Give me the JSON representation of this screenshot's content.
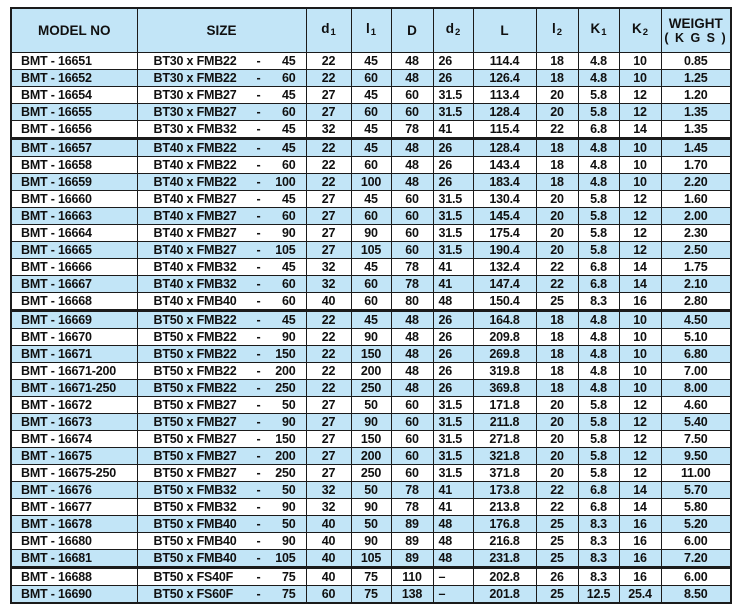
{
  "colors": {
    "row_alt_bg": "#c2e5f7",
    "header_bg": "#c2e5f7",
    "border": "#1b1b1b",
    "text": "#101010",
    "page_bg": "#ffffff"
  },
  "table": {
    "size_separator": "-",
    "columns": [
      {
        "key": "model",
        "label": "MODEL NO"
      },
      {
        "key": "size",
        "label": "SIZE"
      },
      {
        "key": "d1",
        "label": "d",
        "sub": "1"
      },
      {
        "key": "l1",
        "label": "l",
        "sub": "1"
      },
      {
        "key": "D",
        "label": "D"
      },
      {
        "key": "d2",
        "label": "d",
        "sub": "2"
      },
      {
        "key": "L",
        "label": "L"
      },
      {
        "key": "l2",
        "label": "l",
        "sub": "2"
      },
      {
        "key": "K1",
        "label": "K",
        "sub": "1"
      },
      {
        "key": "K2",
        "label": "K",
        "sub": "2"
      },
      {
        "key": "weight",
        "label": "WEIGHT",
        "sub_line": "( K G S )"
      }
    ],
    "rows": [
      {
        "model": "BMT - 16651",
        "size_base": "BT30 x FMB22",
        "size_len": "45",
        "d1": "22",
        "l1": "45",
        "D": "48",
        "d2": "26",
        "L": "114.4",
        "l2": "18",
        "K1": "4.8",
        "K2": "10",
        "weight": "0.85",
        "group_end": false
      },
      {
        "model": "BMT - 16652",
        "size_base": "BT30 x FMB22",
        "size_len": "60",
        "d1": "22",
        "l1": "60",
        "D": "48",
        "d2": "26",
        "L": "126.4",
        "l2": "18",
        "K1": "4.8",
        "K2": "10",
        "weight": "1.25",
        "group_end": false
      },
      {
        "model": "BMT - 16654",
        "size_base": "BT30 x FMB27",
        "size_len": "45",
        "d1": "27",
        "l1": "45",
        "D": "60",
        "d2": "31.5",
        "L": "113.4",
        "l2": "20",
        "K1": "5.8",
        "K2": "12",
        "weight": "1.20",
        "group_end": false
      },
      {
        "model": "BMT - 16655",
        "size_base": "BT30 x FMB27",
        "size_len": "60",
        "d1": "27",
        "l1": "60",
        "D": "60",
        "d2": "31.5",
        "L": "128.4",
        "l2": "20",
        "K1": "5.8",
        "K2": "12",
        "weight": "1.35",
        "group_end": false
      },
      {
        "model": "BMT - 16656",
        "size_base": "BT30 x FMB32",
        "size_len": "45",
        "d1": "32",
        "l1": "45",
        "D": "78",
        "d2": "41",
        "L": "115.4",
        "l2": "22",
        "K1": "6.8",
        "K2": "14",
        "weight": "1.35",
        "group_end": true
      },
      {
        "model": "BMT - 16657",
        "size_base": "BT40 x FMB22",
        "size_len": "45",
        "d1": "22",
        "l1": "45",
        "D": "48",
        "d2": "26",
        "L": "128.4",
        "l2": "18",
        "K1": "4.8",
        "K2": "10",
        "weight": "1.45",
        "group_end": false
      },
      {
        "model": "BMT - 16658",
        "size_base": "BT40 x FMB22",
        "size_len": "60",
        "d1": "22",
        "l1": "60",
        "D": "48",
        "d2": "26",
        "L": "143.4",
        "l2": "18",
        "K1": "4.8",
        "K2": "10",
        "weight": "1.70",
        "group_end": false
      },
      {
        "model": "BMT - 16659",
        "size_base": "BT40 x FMB22",
        "size_len": "100",
        "d1": "22",
        "l1": "100",
        "D": "48",
        "d2": "26",
        "L": "183.4",
        "l2": "18",
        "K1": "4.8",
        "K2": "10",
        "weight": "2.20",
        "group_end": false
      },
      {
        "model": "BMT - 16660",
        "size_base": "BT40 x FMB27",
        "size_len": "45",
        "d1": "27",
        "l1": "45",
        "D": "60",
        "d2": "31.5",
        "L": "130.4",
        "l2": "20",
        "K1": "5.8",
        "K2": "12",
        "weight": "1.60",
        "group_end": false
      },
      {
        "model": "BMT - 16663",
        "size_base": "BT40 x FMB27",
        "size_len": "60",
        "d1": "27",
        "l1": "60",
        "D": "60",
        "d2": "31.5",
        "L": "145.4",
        "l2": "20",
        "K1": "5.8",
        "K2": "12",
        "weight": "2.00",
        "group_end": false
      },
      {
        "model": "BMT - 16664",
        "size_base": "BT40 x FMB27",
        "size_len": "90",
        "d1": "27",
        "l1": "90",
        "D": "60",
        "d2": "31.5",
        "L": "175.4",
        "l2": "20",
        "K1": "5.8",
        "K2": "12",
        "weight": "2.30",
        "group_end": false
      },
      {
        "model": "BMT - 16665",
        "size_base": "BT40 x FMB27",
        "size_len": "105",
        "d1": "27",
        "l1": "105",
        "D": "60",
        "d2": "31.5",
        "L": "190.4",
        "l2": "20",
        "K1": "5.8",
        "K2": "12",
        "weight": "2.50",
        "group_end": false
      },
      {
        "model": "BMT - 16666",
        "size_base": "BT40 x FMB32",
        "size_len": "45",
        "d1": "32",
        "l1": "45",
        "D": "78",
        "d2": "41",
        "L": "132.4",
        "l2": "22",
        "K1": "6.8",
        "K2": "14",
        "weight": "1.75",
        "group_end": false
      },
      {
        "model": "BMT - 16667",
        "size_base": "BT40 x FMB32",
        "size_len": "60",
        "d1": "32",
        "l1": "60",
        "D": "78",
        "d2": "41",
        "L": "147.4",
        "l2": "22",
        "K1": "6.8",
        "K2": "14",
        "weight": "2.10",
        "group_end": false
      },
      {
        "model": "BMT - 16668",
        "size_base": "BT40 x FMB40",
        "size_len": "60",
        "d1": "40",
        "l1": "60",
        "D": "80",
        "d2": "48",
        "L": "150.4",
        "l2": "25",
        "K1": "8.3",
        "K2": "16",
        "weight": "2.80",
        "group_end": true
      },
      {
        "model": "BMT - 16669",
        "size_base": "BT50 x FMB22",
        "size_len": "45",
        "d1": "22",
        "l1": "45",
        "D": "48",
        "d2": "26",
        "L": "164.8",
        "l2": "18",
        "K1": "4.8",
        "K2": "10",
        "weight": "4.50",
        "group_end": false
      },
      {
        "model": "BMT - 16670",
        "size_base": "BT50 x FMB22",
        "size_len": "90",
        "d1": "22",
        "l1": "90",
        "D": "48",
        "d2": "26",
        "L": "209.8",
        "l2": "18",
        "K1": "4.8",
        "K2": "10",
        "weight": "5.10",
        "group_end": false
      },
      {
        "model": "BMT - 16671",
        "size_base": "BT50 x FMB22",
        "size_len": "150",
        "d1": "22",
        "l1": "150",
        "D": "48",
        "d2": "26",
        "L": "269.8",
        "l2": "18",
        "K1": "4.8",
        "K2": "10",
        "weight": "6.80",
        "group_end": false
      },
      {
        "model": "BMT - 16671-200",
        "size_base": "BT50 x FMB22",
        "size_len": "200",
        "d1": "22",
        "l1": "200",
        "D": "48",
        "d2": "26",
        "L": "319.8",
        "l2": "18",
        "K1": "4.8",
        "K2": "10",
        "weight": "7.00",
        "group_end": false
      },
      {
        "model": "BMT - 16671-250",
        "size_base": "BT50 x FMB22",
        "size_len": "250",
        "d1": "22",
        "l1": "250",
        "D": "48",
        "d2": "26",
        "L": "369.8",
        "l2": "18",
        "K1": "4.8",
        "K2": "10",
        "weight": "8.00",
        "group_end": false
      },
      {
        "model": "BMT - 16672",
        "size_base": "BT50 x FMB27",
        "size_len": "50",
        "d1": "27",
        "l1": "50",
        "D": "60",
        "d2": "31.5",
        "L": "171.8",
        "l2": "20",
        "K1": "5.8",
        "K2": "12",
        "weight": "4.60",
        "group_end": false
      },
      {
        "model": "BMT - 16673",
        "size_base": "BT50 x FMB27",
        "size_len": "90",
        "d1": "27",
        "l1": "90",
        "D": "60",
        "d2": "31.5",
        "L": "211.8",
        "l2": "20",
        "K1": "5.8",
        "K2": "12",
        "weight": "5.40",
        "group_end": false
      },
      {
        "model": "BMT - 16674",
        "size_base": "BT50 x FMB27",
        "size_len": "150",
        "d1": "27",
        "l1": "150",
        "D": "60",
        "d2": "31.5",
        "L": "271.8",
        "l2": "20",
        "K1": "5.8",
        "K2": "12",
        "weight": "7.50",
        "group_end": false
      },
      {
        "model": "BMT - 16675",
        "size_base": "BT50 x FMB27",
        "size_len": "200",
        "d1": "27",
        "l1": "200",
        "D": "60",
        "d2": "31.5",
        "L": "321.8",
        "l2": "20",
        "K1": "5.8",
        "K2": "12",
        "weight": "9.50",
        "group_end": false
      },
      {
        "model": "BMT - 16675-250",
        "size_base": "BT50 x FMB27",
        "size_len": "250",
        "d1": "27",
        "l1": "250",
        "D": "60",
        "d2": "31.5",
        "L": "371.8",
        "l2": "20",
        "K1": "5.8",
        "K2": "12",
        "weight": "11.00",
        "group_end": false
      },
      {
        "model": "BMT - 16676",
        "size_base": "BT50 x FMB32",
        "size_len": "50",
        "d1": "32",
        "l1": "50",
        "D": "78",
        "d2": "41",
        "L": "173.8",
        "l2": "22",
        "K1": "6.8",
        "K2": "14",
        "weight": "5.70",
        "group_end": false
      },
      {
        "model": "BMT - 16677",
        "size_base": "BT50 x FMB32",
        "size_len": "90",
        "d1": "32",
        "l1": "90",
        "D": "78",
        "d2": "41",
        "L": "213.8",
        "l2": "22",
        "K1": "6.8",
        "K2": "14",
        "weight": "5.80",
        "group_end": false
      },
      {
        "model": "BMT - 16678",
        "size_base": "BT50 x FMB40",
        "size_len": "50",
        "d1": "40",
        "l1": "50",
        "D": "89",
        "d2": "48",
        "L": "176.8",
        "l2": "25",
        "K1": "8.3",
        "K2": "16",
        "weight": "5.20",
        "group_end": false
      },
      {
        "model": "BMT - 16680",
        "size_base": "BT50 x FMB40",
        "size_len": "90",
        "d1": "40",
        "l1": "90",
        "D": "89",
        "d2": "48",
        "L": "216.8",
        "l2": "25",
        "K1": "8.3",
        "K2": "16",
        "weight": "6.00",
        "group_end": false
      },
      {
        "model": "BMT - 16681",
        "size_base": "BT50 x FMB40",
        "size_len": "105",
        "d1": "40",
        "l1": "105",
        "D": "89",
        "d2": "48",
        "L": "231.8",
        "l2": "25",
        "K1": "8.3",
        "K2": "16",
        "weight": "7.20",
        "group_end": true
      },
      {
        "model": "BMT - 16688",
        "size_base": "BT50 x FS40F",
        "size_len": "75",
        "d1": "40",
        "l1": "75",
        "D": "110",
        "d2": "–",
        "L": "202.8",
        "l2": "26",
        "K1": "8.3",
        "K2": "16",
        "weight": "6.00",
        "group_end": false
      },
      {
        "model": "BMT - 16690",
        "size_base": "BT50 x FS60F",
        "size_len": "75",
        "d1": "60",
        "l1": "75",
        "D": "138",
        "d2": "–",
        "L": "201.8",
        "l2": "25",
        "K1": "12.5",
        "K2": "25.4",
        "weight": "8.50",
        "group_end": false
      }
    ]
  }
}
